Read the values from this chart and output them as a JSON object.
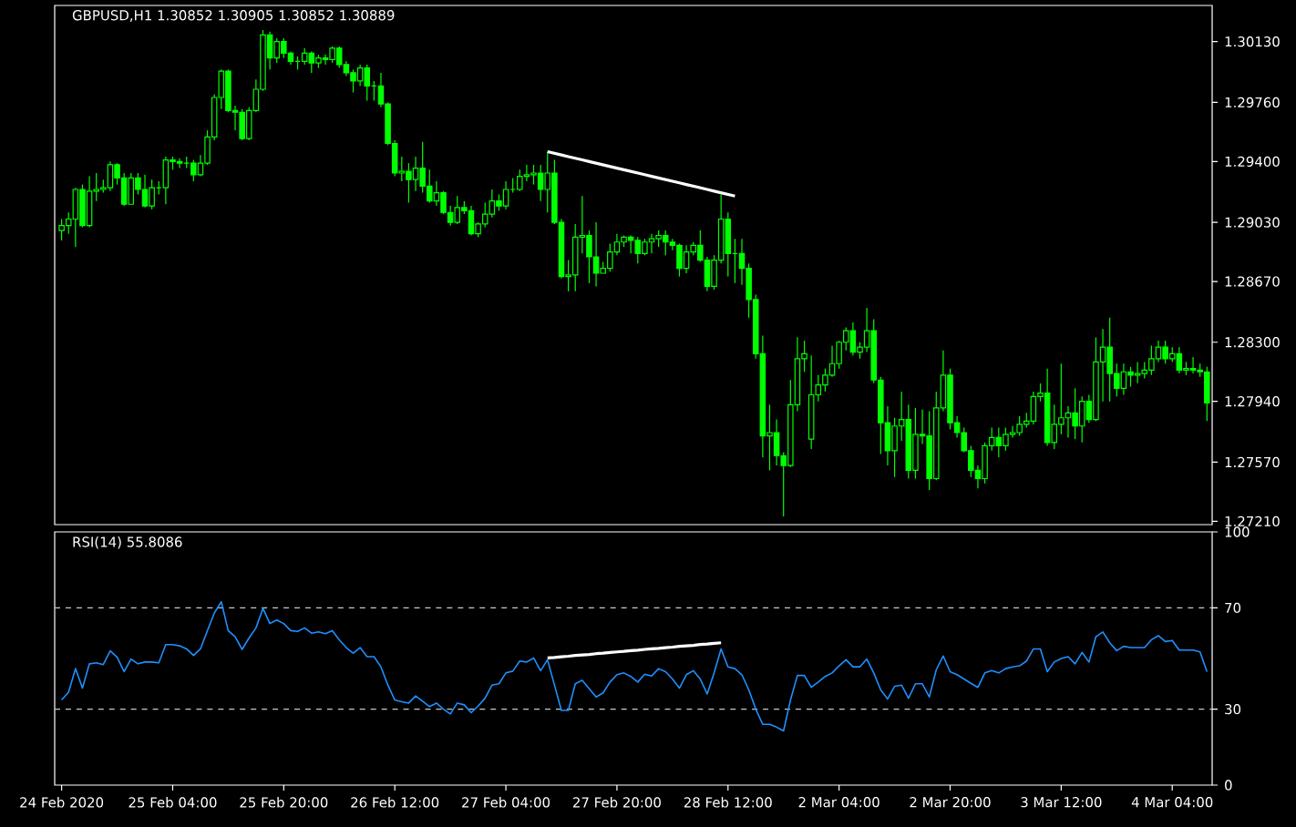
{
  "chart_data": [
    {
      "type": "candlestick",
      "title": "GBPUSD,H1  1.30852 1.30905 1.30852 1.30889",
      "color": "#00ff00",
      "tick_labels": "y",
      "categories": [
        null,
        null,
        null,
        null,
        null,
        null,
        null,
        null,
        null,
        null,
        null,
        null,
        null,
        null,
        null,
        null,
        null,
        null,
        null,
        null,
        null,
        null,
        null,
        null,
        null,
        null,
        null,
        null,
        null,
        null,
        null,
        null,
        null,
        null,
        null,
        null,
        null,
        null,
        null,
        null,
        null,
        null,
        null,
        null,
        null,
        null,
        null,
        null,
        null,
        null,
        null,
        null,
        null,
        null,
        null,
        null,
        null,
        null,
        null,
        null,
        null,
        null,
        null,
        null,
        null,
        null,
        null,
        null,
        null,
        null,
        null,
        null,
        null,
        null,
        null,
        null,
        null,
        null,
        null,
        null,
        null,
        null,
        null,
        null,
        null,
        null,
        null,
        null,
        null,
        null,
        null,
        null,
        null,
        null,
        null,
        null,
        null,
        null,
        null,
        null,
        null,
        null,
        null,
        null,
        null,
        null,
        null,
        null,
        null,
        null,
        null,
        null,
        null,
        null,
        null,
        null,
        null,
        null,
        null,
        null,
        null,
        null,
        null,
        null,
        null,
        null,
        null,
        null,
        null,
        null,
        null,
        null,
        null,
        null,
        null,
        null,
        null,
        null,
        null,
        null,
        null,
        null,
        null,
        null,
        null,
        null,
        null,
        null,
        null,
        null,
        null,
        null,
        null,
        null,
        null,
        null,
        null,
        null,
        null,
        null,
        null,
        null,
        null,
        null,
        null,
        null
      ],
      "ylim": [
        1.2719,
        1.3035
      ],
      "yticks": [
        {
          "value": 1.2721,
          "label": "1.27210"
        },
        {
          "value": 1.2757,
          "label": "1.27570"
        },
        {
          "value": 1.2794,
          "label": "1.27940"
        },
        {
          "value": 1.283,
          "label": "1.28300"
        },
        {
          "value": 1.2867,
          "label": "1.28670"
        },
        {
          "value": 1.2903,
          "label": "1.29030"
        },
        {
          "value": 1.294,
          "label": "1.29400"
        },
        {
          "value": 1.2976,
          "label": "1.29760"
        },
        {
          "value": 1.3013,
          "label": "1.30130"
        }
      ],
      "ohlc": [
        [
          1.2898,
          1.2905,
          1.2892,
          1.2901
        ],
        [
          1.2901,
          1.2909,
          1.2896,
          1.2905
        ],
        [
          1.2905,
          1.2924,
          1.2888,
          1.2923
        ],
        [
          1.2923,
          1.2926,
          1.29,
          1.2901
        ],
        [
          1.2901,
          1.2931,
          1.29,
          1.2922
        ],
        [
          1.2922,
          1.2933,
          1.2916,
          1.2923
        ],
        [
          1.2923,
          1.2929,
          1.2921,
          1.2924
        ],
        [
          1.2924,
          1.294,
          1.2922,
          1.2938
        ],
        [
          1.2938,
          1.2939,
          1.2926,
          1.293
        ],
        [
          1.293,
          1.2933,
          1.2913,
          1.2914
        ],
        [
          1.2914,
          1.2933,
          1.2914,
          1.293
        ],
        [
          1.293,
          1.2933,
          1.292,
          1.2923
        ],
        [
          1.2923,
          1.2932,
          1.2912,
          1.2913
        ],
        [
          1.2913,
          1.2929,
          1.2911,
          1.2924
        ],
        [
          1.2924,
          1.2928,
          1.292,
          1.2924
        ],
        [
          1.2924,
          1.2943,
          1.2914,
          1.2941
        ],
        [
          1.2941,
          1.2943,
          1.2935,
          1.294
        ],
        [
          1.294,
          1.2942,
          1.2936,
          1.2939
        ],
        [
          1.2939,
          1.2943,
          1.2936,
          1.2939
        ],
        [
          1.2939,
          1.2941,
          1.2928,
          1.2932
        ],
        [
          1.2932,
          1.2944,
          1.2931,
          1.2939
        ],
        [
          1.2939,
          1.2959,
          1.2938,
          1.2955
        ],
        [
          1.2955,
          1.2981,
          1.2953,
          1.2979
        ],
        [
          1.2979,
          1.2996,
          1.2972,
          1.2995
        ],
        [
          1.2995,
          1.2996,
          1.297,
          1.2971
        ],
        [
          1.2971,
          1.2974,
          1.2959,
          1.297
        ],
        [
          1.297,
          1.2972,
          1.2953,
          1.2954
        ],
        [
          1.2954,
          1.2973,
          1.2953,
          1.2971
        ],
        [
          1.2971,
          1.299,
          1.297,
          1.2984
        ],
        [
          1.2984,
          1.302,
          1.2983,
          1.3017
        ],
        [
          1.3017,
          1.3019,
          1.2996,
          1.3003
        ],
        [
          1.3003,
          1.3015,
          1.3,
          1.3013
        ],
        [
          1.3013,
          1.3015,
          1.3003,
          1.3006
        ],
        [
          1.3006,
          1.3007,
          1.2999,
          1.3001
        ],
        [
          1.3001,
          1.3004,
          1.2996,
          1.3001
        ],
        [
          1.3001,
          1.3009,
          1.2999,
          1.3006
        ],
        [
          1.3006,
          1.3007,
          1.2994,
          1.3
        ],
        [
          1.3,
          1.3005,
          1.2997,
          1.3003
        ],
        [
          1.3003,
          1.3005,
          1.2999,
          1.3002
        ],
        [
          1.3002,
          1.301,
          1.3,
          1.3009
        ],
        [
          1.3009,
          1.301,
          1.2997,
          1.2999
        ],
        [
          1.2999,
          1.3001,
          1.2992,
          1.2994
        ],
        [
          1.2994,
          1.2996,
          1.2982,
          1.2989
        ],
        [
          1.2989,
          1.2999,
          1.2986,
          1.2997
        ],
        [
          1.2997,
          1.2999,
          1.2977,
          1.2986
        ],
        [
          1.2986,
          1.2989,
          1.2977,
          1.2986
        ],
        [
          1.2986,
          1.2994,
          1.2973,
          1.2975
        ],
        [
          1.2975,
          1.2976,
          1.295,
          1.2951
        ],
        [
          1.2951,
          1.2953,
          1.2931,
          1.2933
        ],
        [
          1.2933,
          1.2943,
          1.2928,
          1.2934
        ],
        [
          1.2934,
          1.2939,
          1.2915,
          1.2929
        ],
        [
          1.2929,
          1.2943,
          1.2922,
          1.2936
        ],
        [
          1.2936,
          1.2952,
          1.2921,
          1.2925
        ],
        [
          1.2925,
          1.2935,
          1.2915,
          1.2916
        ],
        [
          1.2916,
          1.2928,
          1.2913,
          1.2921
        ],
        [
          1.2921,
          1.2922,
          1.2908,
          1.2909
        ],
        [
          1.2909,
          1.2913,
          1.2901,
          1.2903
        ],
        [
          1.2903,
          1.2919,
          1.2902,
          1.2912
        ],
        [
          1.2912,
          1.2916,
          1.2908,
          1.291
        ],
        [
          1.291,
          1.2913,
          1.2895,
          1.2896
        ],
        [
          1.2896,
          1.2903,
          1.2894,
          1.2902
        ],
        [
          1.2902,
          1.2915,
          1.29,
          1.2908
        ],
        [
          1.2908,
          1.2923,
          1.2906,
          1.2916
        ],
        [
          1.2916,
          1.292,
          1.291,
          1.2913
        ],
        [
          1.2913,
          1.2928,
          1.2911,
          1.2923
        ],
        [
          1.2923,
          1.293,
          1.2921,
          1.2923
        ],
        [
          1.2923,
          1.2935,
          1.2922,
          1.2931
        ],
        [
          1.2931,
          1.2938,
          1.2928,
          1.2932
        ],
        [
          1.2932,
          1.2938,
          1.2926,
          1.2933
        ],
        [
          1.2933,
          1.2938,
          1.2916,
          1.2923
        ],
        [
          1.2923,
          1.2946,
          1.2909,
          1.2933
        ],
        [
          1.2933,
          1.2941,
          1.2902,
          1.2903
        ],
        [
          1.2903,
          1.2905,
          1.2869,
          1.287
        ],
        [
          1.287,
          1.288,
          1.2861,
          1.2871
        ],
        [
          1.2871,
          1.2902,
          1.2861,
          1.2894
        ],
        [
          1.2894,
          1.2919,
          1.2884,
          1.2895
        ],
        [
          1.2895,
          1.2898,
          1.2866,
          1.2882
        ],
        [
          1.2882,
          1.2903,
          1.2864,
          1.2872
        ],
        [
          1.2872,
          1.2879,
          1.2872,
          1.2875
        ],
        [
          1.2875,
          1.289,
          1.2873,
          1.2885
        ],
        [
          1.2885,
          1.2896,
          1.2883,
          1.2891
        ],
        [
          1.2891,
          1.2895,
          1.2888,
          1.2894
        ],
        [
          1.2894,
          1.2895,
          1.2884,
          1.2892
        ],
        [
          1.2892,
          1.2894,
          1.2878,
          1.2884
        ],
        [
          1.2884,
          1.2893,
          1.2883,
          1.2891
        ],
        [
          1.2891,
          1.2896,
          1.2884,
          1.2893
        ],
        [
          1.2893,
          1.2898,
          1.2888,
          1.2895
        ],
        [
          1.2895,
          1.2898,
          1.2883,
          1.2891
        ],
        [
          1.2891,
          1.2893,
          1.2886,
          1.2889
        ],
        [
          1.2889,
          1.289,
          1.287,
          1.2875
        ],
        [
          1.2875,
          1.2889,
          1.2872,
          1.2885
        ],
        [
          1.2885,
          1.2891,
          1.2883,
          1.2889
        ],
        [
          1.2889,
          1.2898,
          1.2879,
          1.288
        ],
        [
          1.288,
          1.2882,
          1.2861,
          1.2864
        ],
        [
          1.2864,
          1.2883,
          1.2862,
          1.288
        ],
        [
          1.288,
          1.292,
          1.2878,
          1.2905
        ],
        [
          1.2905,
          1.2909,
          1.287,
          1.2884
        ],
        [
          1.2884,
          1.2893,
          1.2866,
          1.2884
        ],
        [
          1.2884,
          1.2893,
          1.2865,
          1.2875
        ],
        [
          1.2875,
          1.2878,
          1.2845,
          1.2856
        ],
        [
          1.2856,
          1.2859,
          1.282,
          1.2823
        ],
        [
          1.2823,
          1.2834,
          1.276,
          1.2773
        ],
        [
          1.2773,
          1.2792,
          1.2752,
          1.2775
        ],
        [
          1.2775,
          1.2783,
          1.2755,
          1.2761
        ],
        [
          1.2761,
          1.2763,
          1.2724,
          1.2755
        ],
        [
          1.2755,
          1.2807,
          1.2754,
          1.2792
        ],
        [
          1.2792,
          1.2833,
          1.2788,
          1.282
        ],
        [
          1.282,
          1.2831,
          1.2812,
          1.2823
        ],
        [
          1.2771,
          1.2822,
          1.2765,
          1.2798
        ],
        [
          1.2798,
          1.281,
          1.2794,
          1.2804
        ],
        [
          1.2804,
          1.2814,
          1.28,
          1.281
        ],
        [
          1.281,
          1.2828,
          1.2809,
          1.2817
        ],
        [
          1.2817,
          1.2831,
          1.2814,
          1.283
        ],
        [
          1.283,
          1.2839,
          1.2825,
          1.2837
        ],
        [
          1.2837,
          1.2842,
          1.2822,
          1.2824
        ],
        [
          1.2824,
          1.283,
          1.282,
          1.2827
        ],
        [
          1.2827,
          1.2851,
          1.2824,
          1.2837
        ],
        [
          1.2837,
          1.2844,
          1.2805,
          1.2807
        ],
        [
          1.2807,
          1.2809,
          1.2762,
          1.2781
        ],
        [
          1.2781,
          1.2791,
          1.2755,
          1.2764
        ],
        [
          1.2764,
          1.2784,
          1.2748,
          1.2779
        ],
        [
          1.2779,
          1.28,
          1.277,
          1.2783
        ],
        [
          1.2783,
          1.2792,
          1.2747,
          1.2752
        ],
        [
          1.2752,
          1.279,
          1.2747,
          1.2774
        ],
        [
          1.2774,
          1.2789,
          1.2768,
          1.2773
        ],
        [
          1.2773,
          1.2788,
          1.274,
          1.2747
        ],
        [
          1.2747,
          1.28,
          1.2746,
          1.279
        ],
        [
          1.279,
          1.2825,
          1.2788,
          1.281
        ],
        [
          1.281,
          1.2814,
          1.2777,
          1.2781
        ],
        [
          1.2781,
          1.2785,
          1.2772,
          1.2775
        ],
        [
          1.2775,
          1.2778,
          1.2763,
          1.2764
        ],
        [
          1.2764,
          1.2767,
          1.2748,
          1.2752
        ],
        [
          1.2752,
          1.2755,
          1.2741,
          1.2747
        ],
        [
          1.2747,
          1.2769,
          1.2744,
          1.2767
        ],
        [
          1.2767,
          1.2778,
          1.2764,
          1.2772
        ],
        [
          1.2772,
          1.2778,
          1.276,
          1.2767
        ],
        [
          1.2767,
          1.2778,
          1.2764,
          1.2774
        ],
        [
          1.2774,
          1.2779,
          1.2772,
          1.2775
        ],
        [
          1.2775,
          1.2785,
          1.2773,
          1.278
        ],
        [
          1.278,
          1.2787,
          1.2778,
          1.2782
        ],
        [
          1.2782,
          1.28,
          1.278,
          1.2797
        ],
        [
          1.2797,
          1.2805,
          1.2794,
          1.2799
        ],
        [
          1.2799,
          1.2814,
          1.2767,
          1.2769
        ],
        [
          1.2769,
          1.2792,
          1.2765,
          1.278
        ],
        [
          1.278,
          1.2817,
          1.2774,
          1.2784
        ],
        [
          1.2784,
          1.2791,
          1.2772,
          1.2787
        ],
        [
          1.2787,
          1.2802,
          1.2771,
          1.2779
        ],
        [
          1.2779,
          1.2797,
          1.2769,
          1.2794
        ],
        [
          1.2794,
          1.2798,
          1.2781,
          1.2783
        ],
        [
          1.2783,
          1.2833,
          1.2782,
          1.2818
        ],
        [
          1.2818,
          1.2838,
          1.2794,
          1.2827
        ],
        [
          1.2827,
          1.2845,
          1.2794,
          1.2811
        ],
        [
          1.2811,
          1.2817,
          1.2797,
          1.2802
        ],
        [
          1.2802,
          1.2817,
          1.2798,
          1.2812
        ],
        [
          1.2812,
          1.2815,
          1.2803,
          1.281
        ],
        [
          1.281,
          1.2818,
          1.2805,
          1.2811
        ],
        [
          1.2811,
          1.2818,
          1.2808,
          1.2813
        ],
        [
          1.2813,
          1.2828,
          1.281,
          1.282
        ],
        [
          1.282,
          1.2831,
          1.2818,
          1.2827
        ],
        [
          1.2827,
          1.2831,
          1.2817,
          1.282
        ],
        [
          1.282,
          1.2827,
          1.2818,
          1.2823
        ],
        [
          1.2823,
          1.2827,
          1.2811,
          1.2813
        ],
        [
          1.2813,
          1.2818,
          1.281,
          1.2814
        ],
        [
          1.2814,
          1.2821,
          1.2811,
          1.2813
        ],
        [
          1.2813,
          1.2817,
          1.2809,
          1.2812
        ],
        [
          1.2812,
          1.2815,
          1.2782,
          1.2793
        ]
      ],
      "series": [
        {
          "type": "line",
          "color": "#ffffff",
          "values": [
            null,
            null,
            null,
            null,
            null,
            null,
            null,
            null,
            null,
            null,
            null,
            null,
            null,
            null,
            null,
            null,
            null,
            null,
            null,
            null,
            null,
            null,
            null,
            null,
            null,
            null,
            null,
            null,
            null,
            null,
            null,
            null,
            null,
            null,
            null,
            null,
            null,
            null,
            null,
            null,
            null,
            null,
            null,
            null,
            null,
            null,
            null,
            null,
            null,
            null,
            null,
            null,
            null,
            null,
            null,
            null,
            null,
            null,
            null,
            null,
            null,
            null,
            null,
            null,
            null,
            null,
            null,
            null,
            null,
            null,
            1.2946,
            1.2945,
            1.2944,
            1.2943,
            1.2942,
            1.2941,
            1.294,
            1.2939,
            1.2938,
            1.2937,
            1.2936,
            1.2935,
            1.2934,
            1.2933,
            1.2932,
            1.2931,
            1.293,
            1.2929,
            1.2928,
            1.2927,
            1.2926,
            1.2925,
            1.2924,
            1.2923,
            1.2922,
            1.2921,
            1.292,
            1.2919,
            null,
            null,
            null,
            null,
            null,
            null,
            null,
            null,
            null,
            null,
            null,
            null,
            null,
            null,
            null,
            null,
            null,
            null,
            null,
            null,
            null,
            null,
            null,
            null,
            null,
            null,
            null,
            null,
            null,
            null,
            null,
            null,
            null,
            null,
            null,
            null,
            null,
            null,
            null,
            null,
            null,
            null,
            null,
            null,
            null,
            null,
            null,
            null,
            null,
            null,
            null,
            null,
            null,
            null,
            null,
            null,
            null,
            null,
            null,
            null,
            null,
            null,
            null,
            null,
            null,
            null,
            null,
            null
          ]
        }
      ]
    },
    {
      "type": "line",
      "title": "RSI(14) 55.8086",
      "categories": [
        "24 Feb 2020",
        null,
        null,
        null,
        null,
        null,
        null,
        null,
        null,
        null,
        null,
        null,
        null,
        null,
        null,
        null,
        "25 Feb 04:00",
        null,
        null,
        null,
        null,
        null,
        null,
        null,
        null,
        null,
        null,
        null,
        null,
        null,
        null,
        null,
        "25 Feb 20:00",
        null,
        null,
        null,
        null,
        null,
        null,
        null,
        null,
        null,
        null,
        null,
        null,
        null,
        null,
        null,
        "26 Feb 12:00",
        null,
        null,
        null,
        null,
        null,
        null,
        null,
        null,
        null,
        null,
        null,
        null,
        null,
        null,
        null,
        "27 Feb 04:00",
        null,
        null,
        null,
        null,
        null,
        null,
        null,
        null,
        null,
        null,
        null,
        null,
        null,
        null,
        null,
        "27 Feb 20:00",
        null,
        null,
        null,
        null,
        null,
        null,
        null,
        null,
        null,
        null,
        null,
        null,
        null,
        null,
        null,
        "28 Feb 12:00",
        null,
        null,
        null,
        null,
        null,
        null,
        null,
        null,
        null,
        null,
        null,
        null,
        null,
        null,
        null,
        "2 Mar 04:00",
        null,
        null,
        null,
        null,
        null,
        null,
        null,
        null,
        null,
        null,
        null,
        null,
        null,
        null,
        null,
        "2 Mar 20:00",
        null,
        null,
        null,
        null,
        null,
        null,
        null,
        null,
        null,
        null,
        null,
        null,
        null,
        null,
        null,
        "3 Mar 12:00",
        null,
        null,
        null,
        null,
        null,
        null,
        null,
        null,
        null,
        null,
        null,
        null,
        null,
        null,
        null,
        "4 Mar 04:00",
        null,
        null,
        null,
        null,
        null
      ],
      "ylim": [
        0,
        100
      ],
      "yticks": [
        0,
        30,
        70,
        100
      ],
      "ref_lines": [
        {
          "axis": "y",
          "value": 30,
          "color": "#c8c8c8",
          "line_style": "dashed"
        },
        {
          "axis": "y",
          "value": 70,
          "color": "#c8c8c8",
          "line_style": "dashed"
        }
      ],
      "series": [
        {
          "color": "#1e90ff",
          "values": [
            33.6,
            36.7,
            46,
            38.3,
            47.9,
            48.3,
            47.6,
            53,
            50.5,
            44.8,
            49.8,
            47.9,
            48.6,
            48.6,
            48.3,
            55.5,
            55.5,
            55,
            53.8,
            51.2,
            53.8,
            61,
            68,
            72.4,
            61,
            58.6,
            53.6,
            58.1,
            62.1,
            69.8,
            63.8,
            65.2,
            63.8,
            61,
            60.7,
            62.1,
            60,
            60.5,
            59.8,
            61,
            57.4,
            54.3,
            52.1,
            54.3,
            50.7,
            50.7,
            46.7,
            39.5,
            33.6,
            32.9,
            32.4,
            35.2,
            33.1,
            31,
            32.4,
            30,
            28.1,
            32.4,
            31.7,
            28.6,
            31.2,
            34.3,
            39.5,
            40,
            44.3,
            45,
            49,
            48.6,
            50.2,
            45.2,
            49.5,
            39.5,
            29.5,
            29.5,
            40,
            41.4,
            38.1,
            34.8,
            36.4,
            40.7,
            43.6,
            44.3,
            42.9,
            40.7,
            43.8,
            43.1,
            46,
            44.8,
            41.9,
            38.3,
            43.6,
            45.2,
            41.9,
            36,
            44.3,
            53.8,
            46.7,
            46,
            43.6,
            37.6,
            30,
            24,
            24,
            22.9,
            21.4,
            33.6,
            43.3,
            43.3,
            38.6,
            40.7,
            42.9,
            44.3,
            47.1,
            49.5,
            46.7,
            46.7,
            49.8,
            44.3,
            37.6,
            34,
            39,
            39.5,
            34.3,
            40,
            40,
            34.8,
            45.5,
            51,
            44.8,
            43.6,
            41.9,
            40.2,
            38.6,
            44.3,
            45.2,
            44.3,
            46,
            46.7,
            47.1,
            49,
            53.8,
            53.8,
            44.8,
            48.6,
            50,
            50.7,
            47.9,
            52.4,
            48.6,
            58.6,
            60.5,
            56.2,
            53.1,
            54.8,
            54.3,
            54.3,
            54.3,
            57.4,
            59,
            56.7,
            57.1,
            53.3,
            53.3,
            53.3,
            52.6,
            44.8
          ]
        },
        {
          "type": "line",
          "color": "#ffffff",
          "values": [
            null,
            null,
            null,
            null,
            null,
            null,
            null,
            null,
            null,
            null,
            null,
            null,
            null,
            null,
            null,
            null,
            null,
            null,
            null,
            null,
            null,
            null,
            null,
            null,
            null,
            null,
            null,
            null,
            null,
            null,
            null,
            null,
            null,
            null,
            null,
            null,
            null,
            null,
            null,
            null,
            null,
            null,
            null,
            null,
            null,
            null,
            null,
            null,
            null,
            null,
            null,
            null,
            null,
            null,
            null,
            null,
            null,
            null,
            null,
            null,
            null,
            null,
            null,
            null,
            null,
            null,
            null,
            null,
            null,
            null,
            50.2,
            50.4,
            50.7,
            50.9,
            51.2,
            51.4,
            51.6,
            51.9,
            52.1,
            52.4,
            52.6,
            52.8,
            53.1,
            53.3,
            53.6,
            53.8,
            54,
            54.3,
            54.5,
            54.8,
            55,
            55.2,
            55.5,
            55.7,
            56,
            56.2,
            null,
            null,
            null,
            null,
            null,
            null,
            null,
            null,
            null,
            null,
            null,
            null,
            null,
            null,
            null,
            null,
            null,
            null,
            null,
            null,
            null,
            null,
            null,
            null,
            null,
            null,
            null,
            null,
            null,
            null,
            null,
            null,
            null,
            null,
            null,
            null,
            null,
            null,
            null,
            null,
            null,
            null,
            null,
            null,
            null,
            null,
            null,
            null,
            null,
            null,
            null,
            null,
            null,
            null,
            null,
            null,
            null,
            null,
            null,
            null,
            null,
            null,
            null,
            null,
            null,
            null,
            null,
            null,
            null,
            null
          ]
        }
      ]
    }
  ]
}
